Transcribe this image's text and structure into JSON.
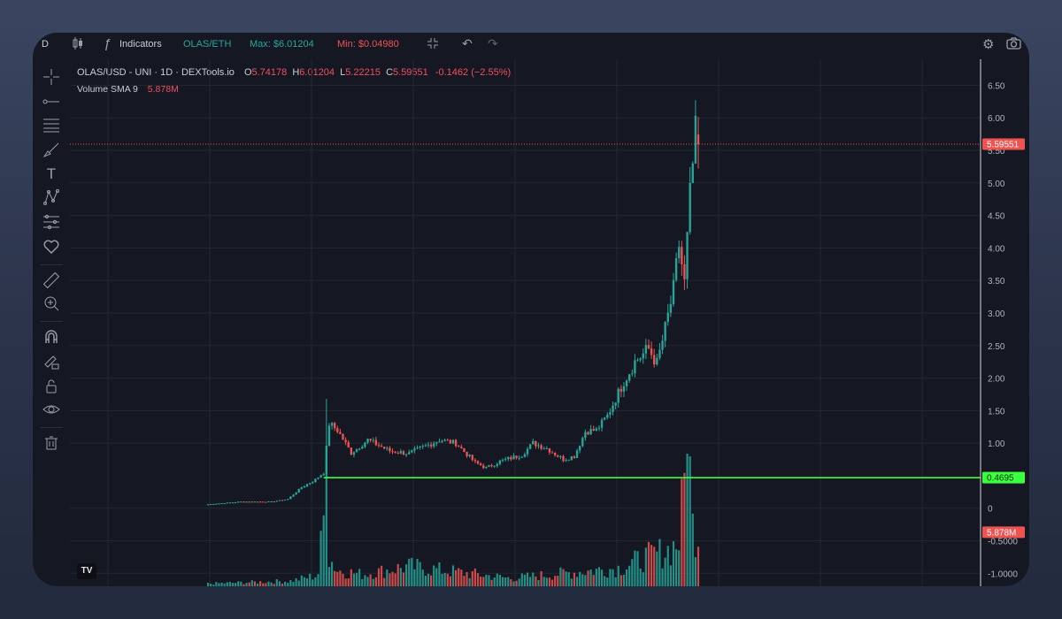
{
  "topbar": {
    "interval": "D",
    "indicators_label": "Indicators",
    "pair": "OLAS/ETH",
    "max_label": "Max: $6.01204",
    "min_label": "Min: $0.04980"
  },
  "legend": {
    "symbol": "OLAS/USD - UNI · 1D · DEXTools.io",
    "o_key": "O",
    "o_val": "5.74178",
    "h_key": "H",
    "h_val": "6.01204",
    "l_key": "L",
    "l_val": "5.22215",
    "c_key": "C",
    "c_val": "5.59551",
    "change": "-0.1462 (−2.55%)",
    "volume_label": "Volume SMA 9",
    "volume_val": "5.878M"
  },
  "icons": [
    "crosshair-icon",
    "trend-line-icon",
    "fib-lines-icon",
    "brush-icon",
    "text-icon",
    "pattern-icon",
    "prediction-icon",
    "heart-icon",
    "ruler-icon",
    "zoom-in-icon",
    "magnet-icon",
    "lock-draw-icon",
    "lock-icon",
    "eye-icon",
    "trash-icon",
    "settings-icon",
    "camera-icon",
    "undo-icon",
    "redo-icon",
    "fullscreen-icon",
    "chart-type-icon"
  ],
  "colors": {
    "up": "#26a69a",
    "down": "#ef5350",
    "hline": "#39ff3d",
    "background": "#151823",
    "grid": "#232733"
  },
  "chart_data": {
    "type": "candlestick",
    "ylim": [
      -1.2,
      6.9
    ],
    "y_ticks": [
      "6.50",
      "6.00",
      "5.50",
      "5.00",
      "4.50",
      "4.00",
      "3.50",
      "3.00",
      "2.50",
      "2.00",
      "1.50",
      "1.00",
      "0",
      "-0.5000",
      "-1.0000"
    ],
    "y_tick_values": [
      6.5,
      6.0,
      5.5,
      5.0,
      4.5,
      4.0,
      3.5,
      3.0,
      2.5,
      2.0,
      1.5,
      1.0,
      0,
      -0.5,
      -1.0
    ],
    "last_price": "5.59551",
    "last_price_value": 5.59551,
    "horizontal_line": "0.4695",
    "horizontal_line_value": 0.4695,
    "volume_tag": "5.878M",
    "volume_tag_value": -0.37,
    "last_candle": {
      "o": 5.74178,
      "h": 6.01204,
      "l": 5.22215,
      "c": 5.59551
    },
    "price_path_keypoints": [
      [
        0,
        0.06
      ],
      [
        12,
        0.1
      ],
      [
        23,
        0.1
      ],
      [
        29,
        0.14
      ],
      [
        34,
        0.32
      ],
      [
        39,
        0.44
      ],
      [
        42,
        0.55
      ],
      [
        44,
        1.3
      ],
      [
        47,
        1.2
      ],
      [
        52,
        0.85
      ],
      [
        58,
        1.05
      ],
      [
        66,
        0.88
      ],
      [
        73,
        0.84
      ],
      [
        84,
        1.05
      ],
      [
        90,
        1.0
      ],
      [
        97,
        0.7
      ],
      [
        101,
        0.62
      ],
      [
        106,
        0.72
      ],
      [
        114,
        0.82
      ],
      [
        118,
        1.0
      ],
      [
        123,
        0.92
      ],
      [
        129,
        0.75
      ],
      [
        133,
        0.8
      ],
      [
        137,
        1.18
      ],
      [
        141,
        1.2
      ],
      [
        145,
        1.42
      ],
      [
        151,
        1.95
      ],
      [
        155,
        2.25
      ],
      [
        160,
        2.45
      ],
      [
        163,
        2.22
      ],
      [
        166,
        2.75
      ],
      [
        169,
        3.35
      ],
      [
        171,
        4.05
      ],
      [
        173,
        3.45
      ],
      [
        175,
        4.8
      ],
      [
        177,
        5.75
      ],
      [
        178,
        5.59551
      ]
    ],
    "volume_series_sample": [
      [
        0,
        2
      ],
      [
        30,
        4
      ],
      [
        39,
        8
      ],
      [
        40,
        10
      ],
      [
        43,
        70
      ],
      [
        44,
        22
      ],
      [
        47,
        12
      ],
      [
        56,
        9
      ],
      [
        73,
        15
      ],
      [
        110,
        6
      ],
      [
        150,
        14
      ],
      [
        158,
        21
      ],
      [
        168,
        28
      ],
      [
        171,
        34
      ],
      [
        174,
        100
      ],
      [
        175,
        48
      ],
      [
        178,
        40
      ]
    ]
  }
}
